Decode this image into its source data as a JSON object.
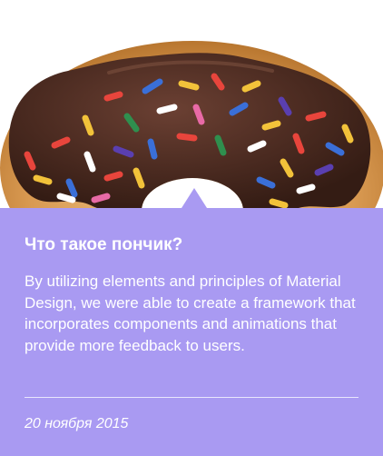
{
  "card": {
    "title": "Что такое пончик?",
    "text": "By utilizing elements and principles of Material Design, we were able to create a framework that incorporates components and animations that provide more feedback to users.",
    "date": "20 ноября 2015",
    "panel_color": "#a99af2"
  },
  "image": {
    "subject": "donut-with-sprinkles"
  }
}
